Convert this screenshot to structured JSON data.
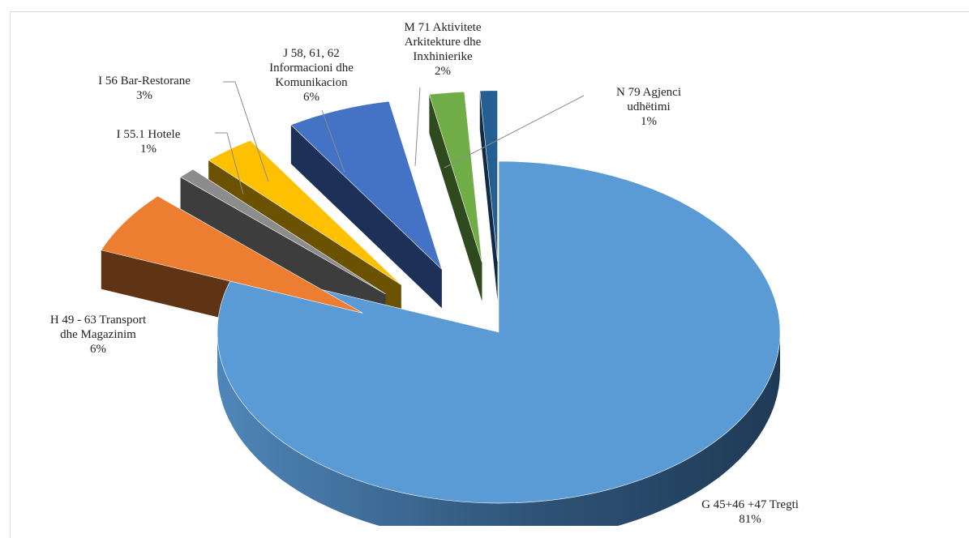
{
  "chart_data": {
    "type": "pie",
    "style": "3d-exploded",
    "title": "",
    "slices": [
      {
        "lines": [
          "G      45+46 +47        Tregti",
          "81%"
        ],
        "value": 81,
        "color": "#5b9bd5",
        "side": "#2b4a6a"
      },
      {
        "lines": [
          "H      49 - 63        Transport",
          "dhe Magazinim",
          "6%"
        ],
        "value": 6,
        "color": "#ed7d31",
        "side": "#5f3415"
      },
      {
        "lines": [
          "I      55.1       Hotele",
          "1%"
        ],
        "value": 1,
        "color": "#8c8c8c",
        "side": "#3d3d3d"
      },
      {
        "lines": [
          "I      56         Bar-Restorane",
          "3%"
        ],
        "value": 3,
        "color": "#ffc000",
        "side": "#6b5200"
      },
      {
        "lines": [
          "J      58, 61, 62",
          "Informacioni  dhe",
          "Komunikacion",
          "6%"
        ],
        "value": 6,
        "color": "#4472c4",
        "side": "#1d3158"
      },
      {
        "lines": [
          "M      71         Aktivitete",
          "Arkitekture  dhe",
          "Inxhinierike",
          "2%"
        ],
        "value": 2,
        "color": "#70ad47",
        "side": "#2f4a1e"
      },
      {
        "lines": [
          "N      79       Agjenci",
          "udhëtimi",
          "1%"
        ],
        "value": 1,
        "color": "#255e91",
        "side": "#112b44"
      }
    ]
  }
}
